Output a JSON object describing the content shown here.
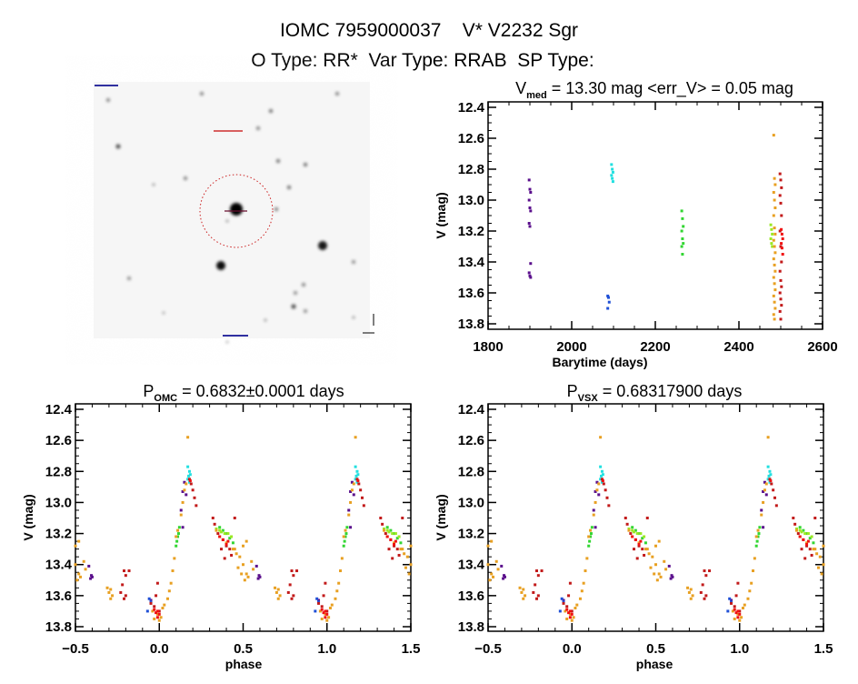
{
  "header": {
    "title": "IOMC 7959000037    V* V2232 Sgr",
    "subtitle": "O Type: RR*  Var Type: RRAB  SP Type:"
  },
  "colors": {
    "purple": "#5a0f8c",
    "blue": "#1f4fd6",
    "cyan": "#22e0e0",
    "green": "#33d633",
    "lime": "#9be822",
    "orange": "#e8a022",
    "darkred": "#c21a1a",
    "red": "#f01010"
  },
  "sky_image": {
    "description_icon": "finder-chart-image",
    "target_marker_color": "#cc2222"
  },
  "chart_data": [
    {
      "type": "scatter",
      "title_main": "V",
      "title_sub": "med",
      "title_rest": " = 13.30 mag <err_V> = 0.05 mag",
      "xlabel": "Barytime (days)",
      "ylabel": "V (mag)",
      "xlim": [
        1800,
        2600
      ],
      "ylim": [
        13.83,
        12.39
      ],
      "y_inverted": true,
      "xticks": [
        "1800",
        "2000",
        "2200",
        "2400",
        "2600"
      ],
      "yticks": [
        "12.4",
        "12.6",
        "12.8",
        "13.0",
        "13.2",
        "13.4",
        "13.6",
        "13.8"
      ],
      "series": [
        {
          "color": "purple",
          "t": 1900,
          "mags": [
            12.87,
            12.93,
            12.95,
            13.0,
            13.05,
            13.07,
            13.15,
            13.17,
            13.41,
            13.47,
            13.49,
            13.5
          ]
        },
        {
          "color": "blue",
          "t": 2088,
          "mags": [
            13.62,
            13.63,
            13.66,
            13.7
          ]
        },
        {
          "color": "cyan",
          "t": 2097,
          "mags": [
            12.77,
            12.8,
            12.82,
            12.84,
            12.86,
            12.88
          ]
        },
        {
          "color": "green",
          "t": 2265,
          "mags": [
            13.07,
            13.12,
            13.17,
            13.2,
            13.25,
            13.28,
            13.3,
            13.35
          ]
        },
        {
          "color": "lime",
          "t": 2478,
          "mags": [
            13.16,
            13.19,
            13.22,
            13.25,
            13.28,
            13.3
          ]
        },
        {
          "color": "orange",
          "t": 2485,
          "mags": [
            12.58,
            12.86,
            12.9,
            12.95,
            13.0,
            13.05,
            13.1,
            13.18,
            13.22,
            13.26,
            13.3,
            13.34,
            13.38,
            13.42,
            13.46,
            13.5,
            13.54,
            13.58,
            13.62,
            13.66,
            13.7,
            13.74,
            13.77
          ]
        },
        {
          "color": "darkred",
          "t": 2500,
          "mags": [
            12.83,
            12.87,
            12.92,
            12.97,
            13.02,
            13.1,
            13.2,
            13.3,
            13.4,
            13.46,
            13.52,
            13.56,
            13.6,
            13.64,
            13.68,
            13.72,
            13.77
          ]
        },
        {
          "color": "red",
          "t": 2503,
          "mags": [
            13.19,
            13.22,
            13.25,
            13.28,
            13.31,
            13.35
          ]
        }
      ]
    },
    {
      "type": "scatter",
      "title_main": "P",
      "title_sub": "OMC",
      "title_rest": " = 0.6832±0.0001 days",
      "xlabel": "phase",
      "ylabel": "V (mag)",
      "xlim": [
        -0.5,
        1.5
      ],
      "ylim": [
        13.83,
        12.39
      ],
      "y_inverted": true,
      "xticks": [
        "-0.5",
        "0.0",
        "0.5",
        "1.0",
        "1.5"
      ],
      "yticks": [
        "12.4",
        "12.6",
        "12.8",
        "13.0",
        "13.2",
        "13.4",
        "13.6",
        "13.8"
      ],
      "phase_repeated": true
    },
    {
      "type": "scatter",
      "title_main": "P",
      "title_sub": "VSX",
      "title_rest": " = 0.68317900 days",
      "xlabel": "phase",
      "ylabel": "V (mag)",
      "xlim": [
        -0.5,
        1.5
      ],
      "ylim": [
        13.83,
        12.39
      ],
      "y_inverted": true,
      "xticks": [
        "-0.5",
        "0.0",
        "0.5",
        "1.0",
        "1.5"
      ],
      "yticks": [
        "12.4",
        "12.6",
        "12.8",
        "13.0",
        "13.2",
        "13.4",
        "13.6",
        "13.8"
      ],
      "phase_repeated": true
    }
  ],
  "phase_curve": [
    {
      "color": "purple",
      "pts": [
        [
          0.59,
          13.49
        ],
        [
          0.58,
          13.41
        ],
        [
          0.15,
          12.87
        ],
        [
          0.14,
          12.93
        ],
        [
          0.13,
          13.05
        ],
        [
          0.14,
          13.16
        ],
        [
          0.6,
          13.48
        ],
        [
          0.95,
          13.63
        ],
        [
          0.16,
          12.95
        ],
        [
          0.595,
          13.47
        ]
      ]
    },
    {
      "color": "blue",
      "pts": [
        [
          0.94,
          13.62
        ],
        [
          0.95,
          13.64
        ],
        [
          0.93,
          13.7
        ]
      ]
    },
    {
      "color": "cyan",
      "pts": [
        [
          0.17,
          12.77
        ],
        [
          0.18,
          12.8
        ],
        [
          0.175,
          12.83
        ],
        [
          0.18,
          12.87
        ],
        [
          0.185,
          12.82
        ],
        [
          0.17,
          12.85
        ]
      ]
    },
    {
      "color": "green",
      "pts": [
        [
          0.1,
          13.28
        ],
        [
          0.11,
          13.22
        ],
        [
          0.12,
          13.16
        ],
        [
          0.115,
          13.2
        ],
        [
          0.105,
          13.25
        ],
        [
          0.44,
          13.26
        ],
        [
          0.42,
          13.23
        ],
        [
          0.4,
          13.2
        ],
        [
          0.38,
          13.18
        ],
        [
          0.36,
          13.16
        ]
      ]
    },
    {
      "color": "lime",
      "pts": [
        [
          0.34,
          13.17
        ],
        [
          0.36,
          13.18
        ],
        [
          0.39,
          13.2
        ],
        [
          0.41,
          13.2
        ],
        [
          0.43,
          13.22
        ],
        [
          0.37,
          13.19
        ]
      ]
    },
    {
      "color": "orange",
      "pts": [
        [
          0.17,
          12.58
        ],
        [
          0.16,
          12.88
        ],
        [
          0.15,
          12.92
        ],
        [
          0.14,
          13.0
        ],
        [
          0.13,
          13.08
        ],
        [
          0.11,
          13.18
        ],
        [
          0.1,
          13.22
        ],
        [
          0.09,
          13.36
        ],
        [
          0.08,
          13.44
        ],
        [
          0.07,
          13.52
        ],
        [
          0.06,
          13.57
        ],
        [
          0.05,
          13.62
        ],
        [
          0.03,
          13.66
        ],
        [
          0.01,
          13.74
        ],
        [
          0.0,
          13.76
        ],
        [
          0.34,
          13.18
        ],
        [
          0.36,
          13.22
        ],
        [
          0.4,
          13.26
        ],
        [
          0.44,
          13.3
        ],
        [
          0.46,
          13.33
        ],
        [
          0.48,
          13.35
        ],
        [
          0.5,
          13.4
        ],
        [
          0.47,
          13.42
        ],
        [
          0.49,
          13.46
        ],
        [
          0.51,
          13.5
        ],
        [
          0.45,
          13.3
        ],
        [
          0.5,
          13.28
        ],
        [
          0.52,
          13.25
        ],
        [
          0.52,
          13.46
        ],
        [
          0.53,
          13.48
        ],
        [
          0.55,
          13.38
        ],
        [
          0.56,
          13.43
        ],
        [
          0.69,
          13.55
        ],
        [
          0.7,
          13.58
        ],
        [
          0.71,
          13.62
        ],
        [
          0.72,
          13.6
        ],
        [
          0.71,
          13.56
        ],
        [
          0.96,
          13.7
        ],
        [
          0.99,
          13.72
        ],
        [
          0.97,
          13.75
        ],
        [
          0.02,
          13.68
        ]
      ]
    },
    {
      "color": "darkred",
      "pts": [
        [
          0.18,
          12.85
        ],
        [
          0.19,
          12.88
        ],
        [
          0.2,
          12.92
        ],
        [
          0.21,
          12.97
        ],
        [
          0.22,
          13.02
        ],
        [
          0.32,
          13.1
        ],
        [
          0.33,
          13.14
        ],
        [
          0.35,
          13.2
        ],
        [
          0.38,
          13.24
        ],
        [
          0.4,
          13.28
        ],
        [
          0.42,
          13.3
        ],
        [
          0.37,
          13.3
        ],
        [
          0.39,
          13.36
        ],
        [
          0.43,
          13.34
        ],
        [
          0.45,
          13.1
        ],
        [
          0.79,
          13.44
        ],
        [
          0.8,
          13.47
        ],
        [
          0.78,
          13.53
        ],
        [
          0.77,
          13.58
        ],
        [
          0.8,
          13.6
        ],
        [
          0.82,
          13.44
        ],
        [
          0.79,
          13.62
        ],
        [
          0.95,
          13.65
        ],
        [
          0.98,
          13.6
        ],
        [
          0.99,
          13.52
        ],
        [
          1.0,
          13.7
        ],
        [
          0.97,
          13.67
        ]
      ]
    },
    {
      "color": "red",
      "pts": [
        [
          0.99,
          13.7
        ],
        [
          0.98,
          13.71
        ],
        [
          1.0,
          13.72
        ],
        [
          0.97,
          13.69
        ],
        [
          0.36,
          13.22
        ],
        [
          0.38,
          13.24
        ],
        [
          0.4,
          13.27
        ],
        [
          0.41,
          13.25
        ],
        [
          0.185,
          12.86
        ],
        [
          0.99,
          13.74
        ]
      ]
    }
  ]
}
